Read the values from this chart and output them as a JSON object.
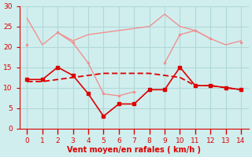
{
  "x": [
    0,
    1,
    2,
    3,
    4,
    5,
    6,
    7,
    8,
    9,
    10,
    11,
    12,
    13,
    14
  ],
  "line1_y": [
    27.0,
    20.5,
    23.5,
    21.5,
    23.0,
    23.5,
    24.0,
    24.5,
    25.0,
    28.0,
    25.0,
    24.0,
    22.0,
    20.5,
    21.5
  ],
  "line2_y": [
    20.5,
    null,
    23.5,
    21.0,
    16.0,
    8.5,
    8.0,
    9.0,
    null,
    16.0,
    23.0,
    24.0,
    22.0,
    null,
    21.0
  ],
  "line3_y": [
    11.5,
    11.5,
    12.0,
    12.5,
    13.0,
    13.5,
    13.5,
    13.5,
    13.5,
    13.0,
    12.5,
    10.5,
    10.5,
    10.0,
    9.5
  ],
  "line4_y": [
    12.0,
    12.0,
    15.0,
    13.0,
    8.5,
    3.0,
    6.0,
    6.0,
    9.5,
    9.5,
    15.0,
    10.5,
    10.5,
    10.0,
    9.5
  ],
  "color_light": "#f09090",
  "color_dark": "#dd0000",
  "bg_color": "#d0eeee",
  "grid_color": "#b0d8d8",
  "xlabel": "Vent moyen/en rafales ( km/h )",
  "xlabel_color": "#dd0000",
  "tick_color": "#dd0000",
  "ylim": [
    0,
    30
  ],
  "xlim": [
    -0.5,
    14.5
  ],
  "yticks": [
    0,
    5,
    10,
    15,
    20,
    25,
    30
  ],
  "xticks": [
    0,
    1,
    2,
    3,
    4,
    5,
    6,
    7,
    8,
    9,
    10,
    11,
    12,
    13,
    14
  ]
}
